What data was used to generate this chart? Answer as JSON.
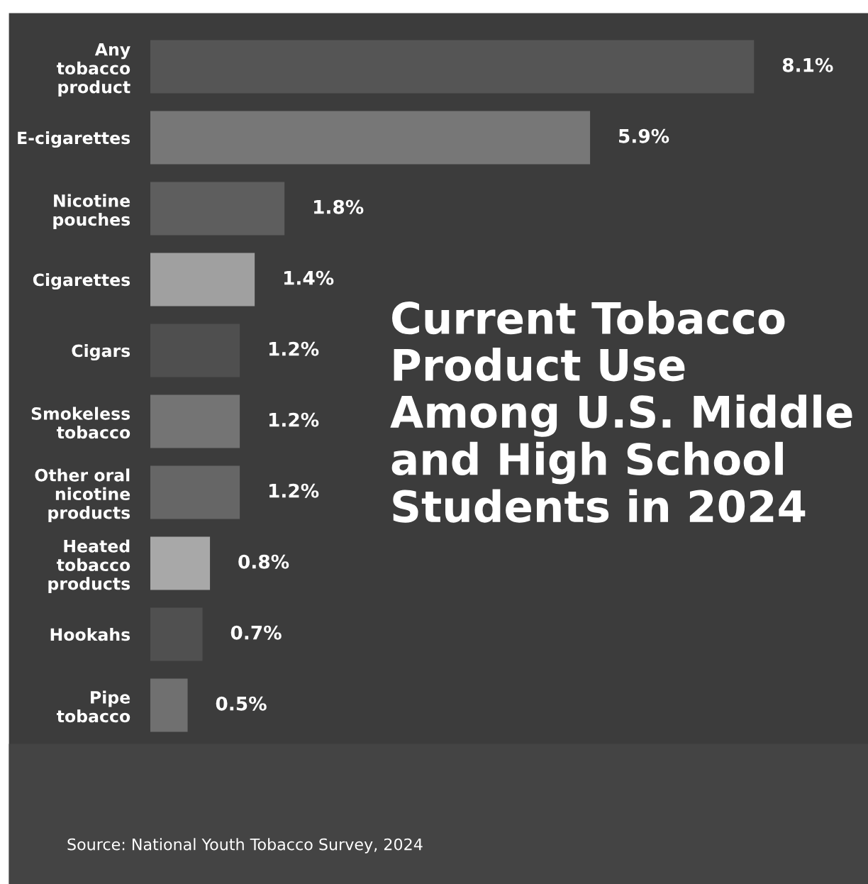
{
  "chart_data": {
    "type": "bar",
    "orientation": "horizontal",
    "title": "Current Tobacco\nProduct Use\nAmong U.S. Middle\nand High School\nStudents in 2024",
    "categories": [
      "Any\ntobacco\nproduct",
      "E-cigarettes",
      "Nicotine\npouches",
      "Cigarettes",
      "Cigars",
      "Smokeless\ntobacco",
      "Other oral\nnicotine\nproducts",
      "Heated\ntobacco\nproducts",
      "Hookahs",
      "Pipe\ntobacco"
    ],
    "values": [
      8.1,
      5.9,
      1.8,
      1.4,
      1.2,
      1.2,
      1.2,
      0.8,
      0.7,
      0.5
    ],
    "value_labels": [
      "8.1%",
      "5.9%",
      "1.8%",
      "1.4%",
      "1.2%",
      "1.2%",
      "1.2%",
      "0.8%",
      "0.7%",
      "0.5%"
    ],
    "colors": [
      "#555555",
      "#777777",
      "#5e5e5e",
      "#a0a0a0",
      "#4f4f4f",
      "#747474",
      "#666666",
      "#a8a8a8",
      "#505050",
      "#707070"
    ],
    "tick_labels": "y",
    "grid": false,
    "legend": false,
    "annotations": [
      "Source: National Youth Tobacco Survey, 2024"
    ]
  }
}
